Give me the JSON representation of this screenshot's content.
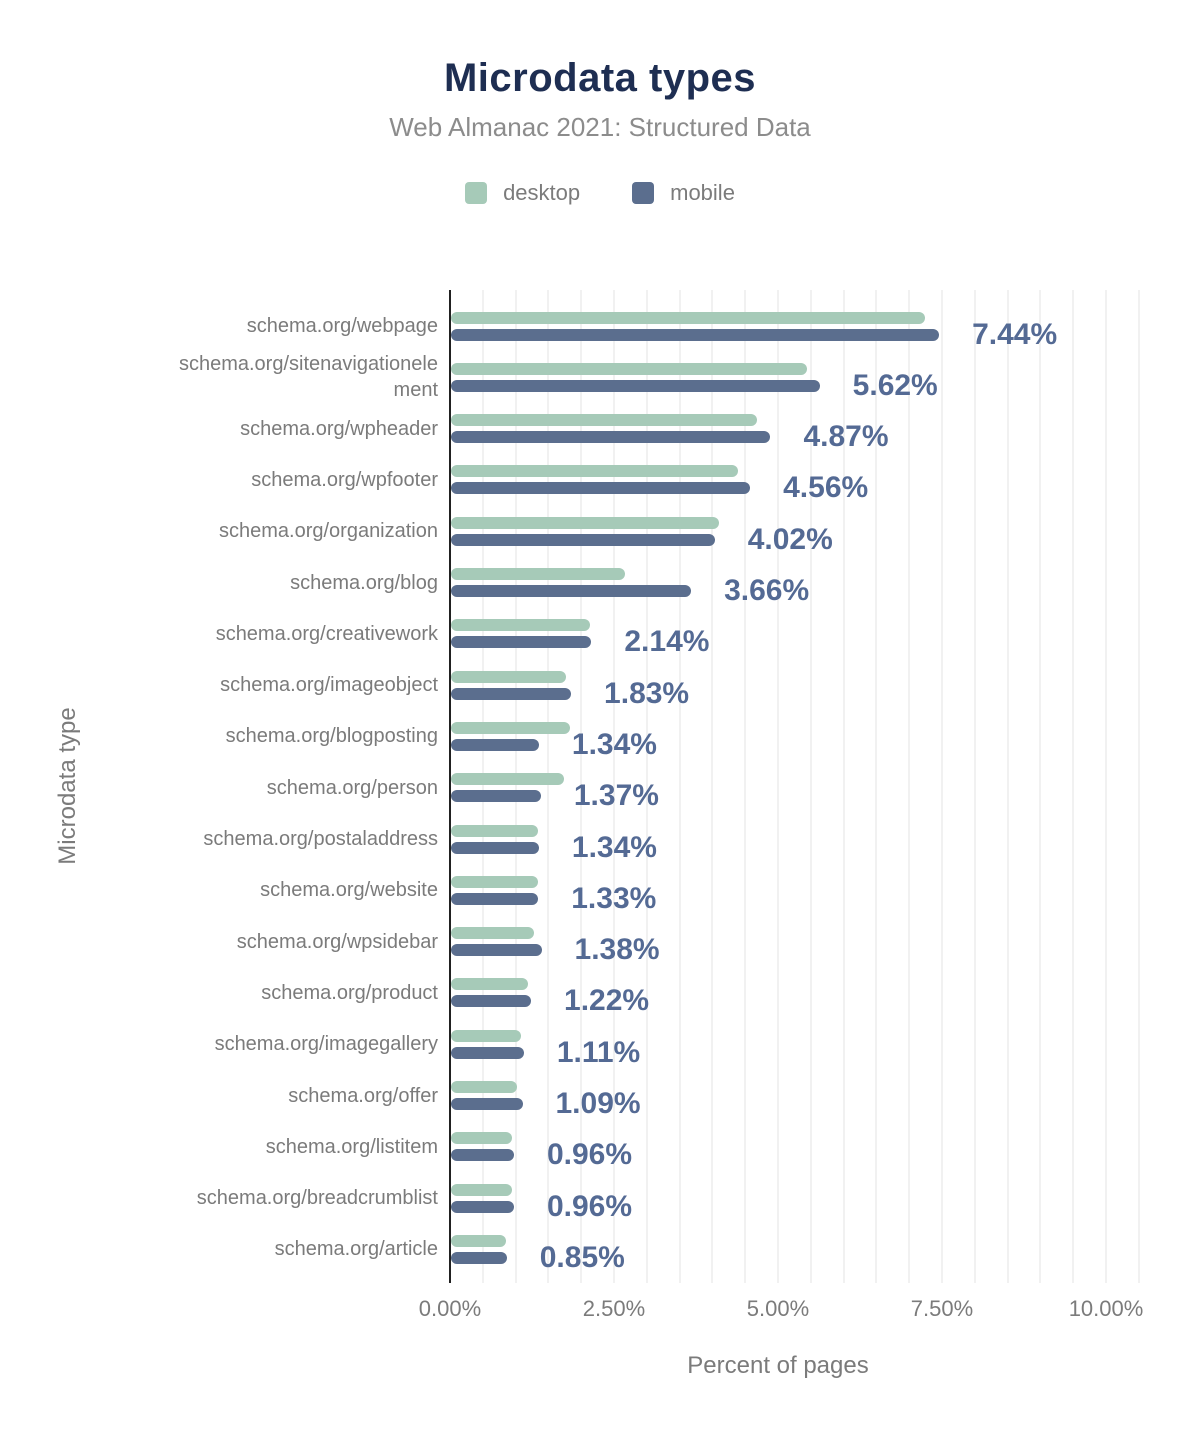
{
  "header": {
    "title": "Microdata types",
    "subtitle": "Web Almanac 2021: Structured Data"
  },
  "legend": [
    {
      "label": "desktop",
      "color": "#a6cab8"
    },
    {
      "label": "mobile",
      "color": "#5b6e8e"
    }
  ],
  "colors": {
    "desktop_bar": "#a6cab8",
    "mobile_bar": "#5b6e8e",
    "value_label": "#546a94",
    "title": "#1e2e52",
    "subtitle": "#8c8c8c",
    "axis_text": "#7b7b7b",
    "axis_line": "#212121",
    "grid_line": "#f1f1f1"
  },
  "chart_data": {
    "type": "bar",
    "orientation": "horizontal",
    "title": "Microdata types",
    "subtitle": "Web Almanac 2021: Structured Data",
    "xlabel": "Percent of pages",
    "ylabel": "Microdata type",
    "xlim": [
      0,
      10.5
    ],
    "grid_step": 0.5,
    "grid": true,
    "legend_position": "top",
    "x_ticks": [
      {
        "value": 0,
        "label": "0.00%"
      },
      {
        "value": 2.5,
        "label": "2.50%"
      },
      {
        "value": 5,
        "label": "5.00%"
      },
      {
        "value": 7.5,
        "label": "7.50%"
      },
      {
        "value": 10,
        "label": "10.00%"
      }
    ],
    "categories": [
      "schema.org/webpage",
      "schema.org/sitenavigationelement",
      "schema.org/wpheader",
      "schema.org/wpfooter",
      "schema.org/organization",
      "schema.org/blog",
      "schema.org/creativework",
      "schema.org/imageobject",
      "schema.org/blogposting",
      "schema.org/person",
      "schema.org/postaladdress",
      "schema.org/website",
      "schema.org/wpsidebar",
      "schema.org/product",
      "schema.org/imagegallery",
      "schema.org/offer",
      "schema.org/listitem",
      "schema.org/breadcrumblist",
      "schema.org/article"
    ],
    "series": [
      {
        "name": "desktop",
        "color": "#a6cab8",
        "values": [
          7.22,
          5.43,
          4.66,
          4.38,
          4.09,
          2.65,
          2.12,
          1.75,
          1.81,
          1.72,
          1.32,
          1.32,
          1.27,
          1.17,
          1.06,
          1.01,
          0.93,
          0.93,
          0.84
        ]
      },
      {
        "name": "mobile",
        "color": "#5b6e8e",
        "values": [
          7.44,
          5.62,
          4.87,
          4.56,
          4.02,
          3.66,
          2.14,
          1.83,
          1.34,
          1.37,
          1.34,
          1.33,
          1.38,
          1.22,
          1.11,
          1.09,
          0.96,
          0.96,
          0.85
        ]
      }
    ],
    "value_labels": [
      "7.44%",
      "5.62%",
      "4.87%",
      "4.56%",
      "4.02%",
      "3.66%",
      "2.14%",
      "1.83%",
      "1.34%",
      "1.37%",
      "1.34%",
      "1.33%",
      "1.38%",
      "1.22%",
      "1.11%",
      "1.09%",
      "0.96%",
      "0.96%",
      "0.85%"
    ]
  }
}
